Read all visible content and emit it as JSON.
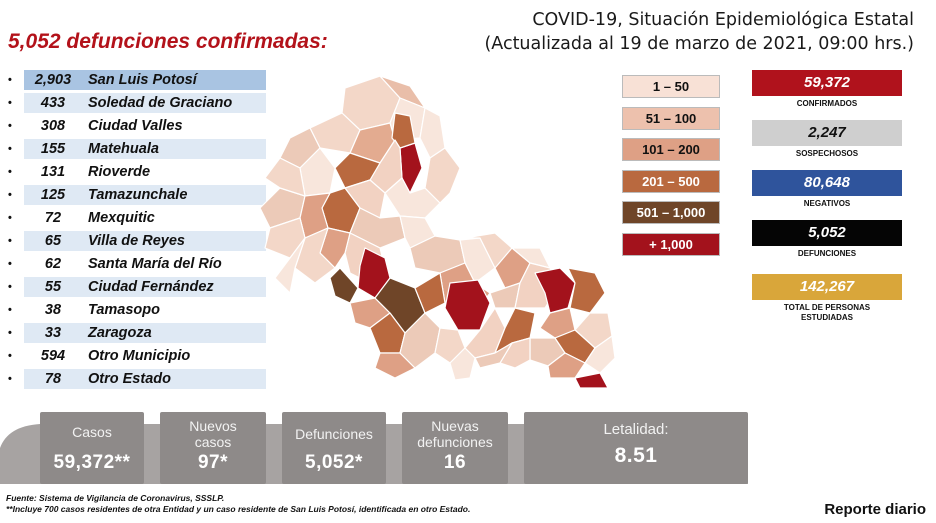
{
  "header": {
    "title_line1": "COVID-19, Situación Epidemiológica Estatal",
    "title_line2": "(Actualizada al 19 de marzo de 2021, 09:00 hrs.)",
    "headline": "5,052 defunciones confirmadas:"
  },
  "municipios": [
    {
      "num": "2,903",
      "name": "San Luis Potosí"
    },
    {
      "num": "433",
      "name": "Soledad de Graciano"
    },
    {
      "num": "308",
      "name": "Ciudad Valles"
    },
    {
      "num": "155",
      "name": "Matehuala"
    },
    {
      "num": "131",
      "name": "Rioverde"
    },
    {
      "num": "125",
      "name": "Tamazunchale"
    },
    {
      "num": "72",
      "name": "Mexquitic"
    },
    {
      "num": "65",
      "name": "Villa de Reyes"
    },
    {
      "num": "62",
      "name": "Santa María del Río"
    },
    {
      "num": "55",
      "name": "Ciudad Fernández"
    },
    {
      "num": "38",
      "name": "Tamasopo"
    },
    {
      "num": "33",
      "name": "Zaragoza"
    },
    {
      "num": "594",
      "name": "Otro Municipio"
    },
    {
      "num": "78",
      "name": "Otro Estado"
    }
  ],
  "legend": [
    {
      "label": "1 – 50",
      "bg": "#f8e1d6",
      "fg": "#111111"
    },
    {
      "label": "51 – 100",
      "bg": "#edc1ad",
      "fg": "#111111"
    },
    {
      "label": "101 – 200",
      "bg": "#dea085",
      "fg": "#111111"
    },
    {
      "label": "201 – 500",
      "bg": "#b9693f",
      "fg": "#ffffff"
    },
    {
      "label": "501 – 1,000",
      "bg": "#6f4528",
      "fg": "#ffffff"
    },
    {
      "label": "+ 1,000",
      "bg": "#a3121c",
      "fg": "#ffffff"
    }
  ],
  "stats": [
    {
      "value": "59,372",
      "label": "CONFIRMADOS",
      "bg": "#b0121c",
      "fg": "#ffffff"
    },
    {
      "value": "2,247",
      "label": "SOSPECHOSOS",
      "bg": "#cfcfcf",
      "fg": "#111111"
    },
    {
      "value": "80,648",
      "label": "NEGATIVOS",
      "bg": "#2f549c",
      "fg": "#ffffff"
    },
    {
      "value": "5,052",
      "label": "DEFUNCIONES",
      "bg": "#050505",
      "fg": "#ffffff"
    },
    {
      "value": "142,267",
      "label": "TOTAL DE PERSONAS ESTUDIADAS",
      "bg": "#d9a63a",
      "fg": "#ffffff"
    }
  ],
  "summary": {
    "casos_label": "Casos",
    "casos_value": "59,372**",
    "nuevos_casos_label": "Nuevos casos",
    "nuevos_casos_value": "97*",
    "defunciones_label": "Defunciones",
    "defunciones_value": "5,052*",
    "nuevas_def_label": "Nuevas defunciones",
    "nuevas_def_value": "16",
    "letalidad_label": "Letalidad:",
    "letalidad_value": "8.51"
  },
  "footer": {
    "fuente": "Fuente: Sistema de Vigilancia de Coronavirus, SSSLP.",
    "nota": "**Incluye 700 casos residentes de otra Entidad y un caso residente de San Luis Potosí, identificada en otro Estado.",
    "report": "Reporte diario"
  },
  "colors": {
    "accent_red": "#b3121a",
    "card_gray": "#8e8a89"
  }
}
